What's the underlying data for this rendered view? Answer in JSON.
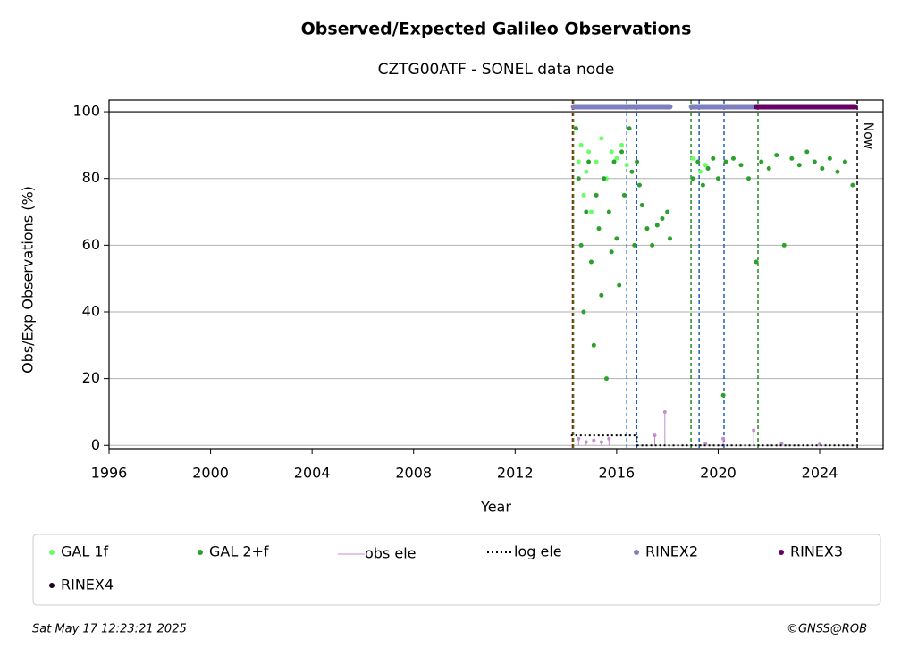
{
  "chart_data": {
    "type": "scatter",
    "title": "Observed/Expected Galileo Observations",
    "subtitle": "CZTG00ATF - SONEL data node",
    "x_label": "Year",
    "y_label": "Obs/Exp Observations (%)",
    "xlim": [
      1996,
      2026.5
    ],
    "ylim": [
      -1,
      103.5
    ],
    "xticks": [
      1996,
      2000,
      2004,
      2008,
      2012,
      2016,
      2020,
      2024
    ],
    "yticks": [
      0,
      20,
      40,
      60,
      80,
      100
    ],
    "grid": true,
    "legend": "bottom",
    "series": [
      {
        "name": "GAL 1f",
        "color": "#66ff66",
        "style": "dots",
        "x": [
          2014.5,
          2014.6,
          2014.7,
          2014.8,
          2014.9,
          2015.0,
          2015.2,
          2015.4,
          2015.6,
          2015.8,
          2016.0,
          2016.2,
          2016.4,
          2019.0,
          2019.3,
          2019.5
        ],
        "values": [
          85,
          90,
          75,
          82,
          88,
          70,
          85,
          92,
          80,
          88,
          86,
          90,
          84,
          86,
          82,
          84
        ]
      },
      {
        "name": "GAL 2+f",
        "color": "#2ca02c",
        "style": "dots",
        "x": [
          2014.4,
          2014.5,
          2014.6,
          2014.7,
          2014.8,
          2014.9,
          2015.0,
          2015.1,
          2015.2,
          2015.3,
          2015.4,
          2015.5,
          2015.6,
          2015.7,
          2015.8,
          2015.9,
          2016.0,
          2016.1,
          2016.2,
          2016.3,
          2016.5,
          2016.6,
          2016.7,
          2016.8,
          2016.9,
          2017.0,
          2017.2,
          2017.4,
          2017.6,
          2017.8,
          2018.0,
          2018.1,
          2019.0,
          2019.2,
          2019.4,
          2019.6,
          2019.8,
          2020.0,
          2020.2,
          2020.3,
          2020.6,
          2020.9,
          2021.2,
          2021.5,
          2021.7,
          2022.0,
          2022.3,
          2022.6,
          2022.9,
          2023.2,
          2023.5,
          2023.8,
          2024.1,
          2024.4,
          2024.7,
          2025.0,
          2025.3
        ],
        "values": [
          95,
          80,
          60,
          40,
          70,
          85,
          55,
          30,
          75,
          65,
          45,
          80,
          20,
          70,
          58,
          85,
          62,
          48,
          88,
          75,
          95,
          82,
          60,
          85,
          78,
          72,
          65,
          60,
          66,
          68,
          70,
          62,
          80,
          85,
          78,
          83,
          86,
          80,
          15,
          85,
          86,
          84,
          80,
          55,
          85,
          83,
          87,
          60,
          86,
          84,
          88,
          85,
          83,
          86,
          82,
          85,
          78
        ]
      },
      {
        "name": "obs ele",
        "color": "#c58ccf",
        "style": "stems",
        "x": [
          2014.5,
          2014.8,
          2015.1,
          2015.4,
          2015.7,
          2017.5,
          2017.9,
          2019.5,
          2020.2,
          2021.4,
          2022.5,
          2024.0
        ],
        "values": [
          2,
          1,
          1.5,
          1,
          2,
          3,
          10,
          0.5,
          2,
          4.5,
          0.5,
          0.3
        ]
      },
      {
        "name": "log ele",
        "color": "#000000",
        "style": "dotline",
        "x": [
          2014.2,
          2016.8,
          2016.8,
          2025.4
        ],
        "values": [
          3,
          3,
          0,
          0
        ]
      },
      {
        "name": "RINEX2",
        "color": "#7f7fbf",
        "style": "bar",
        "x": [
          2014.3,
          2018.1,
          null,
          2018.95,
          2021.5
        ],
        "values": [
          101.5,
          101.5,
          null,
          101.5,
          101.5
        ]
      },
      {
        "name": "RINEX3",
        "color": "#660066",
        "style": "bar",
        "x": [
          2021.5,
          2025.4
        ],
        "values": [
          101.5,
          101.5
        ]
      },
      {
        "name": "RINEX4",
        "color": "#220022",
        "style": "bar",
        "x": [],
        "values": []
      }
    ],
    "vlines": [
      {
        "x": 2014.26,
        "color": "#cc0000"
      },
      {
        "x": 2014.3,
        "color": "#228B22"
      },
      {
        "x": 2016.4,
        "color": "#1f5fbf"
      },
      {
        "x": 2016.79,
        "color": "#1f5fbf"
      },
      {
        "x": 2018.93,
        "color": "#228B22"
      },
      {
        "x": 2019.25,
        "color": "#1f5fbf"
      },
      {
        "x": 2020.23,
        "color": "#1f5fbf"
      },
      {
        "x": 2021.57,
        "color": "#228B22"
      },
      {
        "x": 2025.48,
        "color": "#000000"
      }
    ],
    "annotation": "Now",
    "footer_left": "Sat May 17 12:23:21 2025",
    "footer_right": "©GNSS@ROB"
  }
}
